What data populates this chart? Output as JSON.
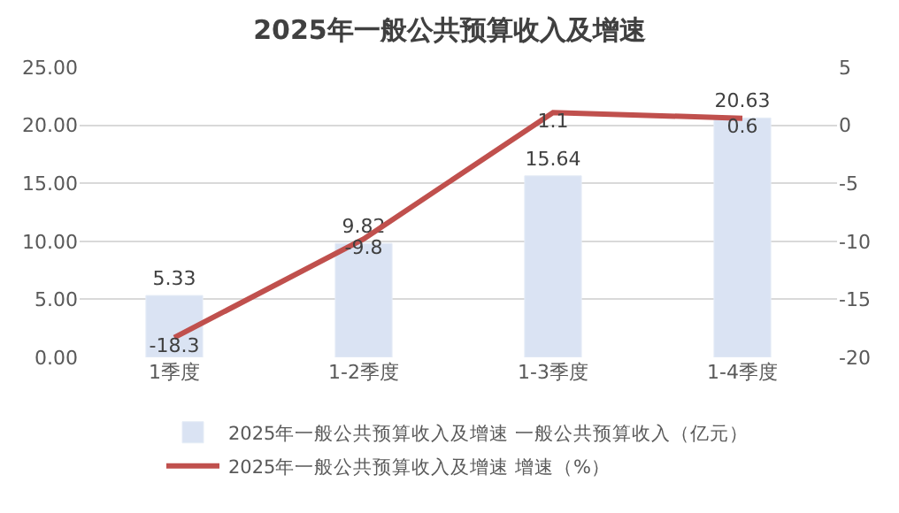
{
  "chart_data": {
    "type": "bar",
    "title": "2025年一般公共预算收入及增速",
    "categories": [
      "1季度",
      "1-2季度",
      "1-3季度",
      "1-4季度"
    ],
    "series": [
      {
        "name": "2025年一般公共预算收入及增速 一般公共预算收入（亿元）",
        "color": "#dae3f3",
        "values": [
          5.33,
          9.82,
          15.64,
          20.63
        ]
      },
      {
        "name": "2025年一般公共预算收入及增速 增速（%）",
        "type": "line",
        "axis": "y2",
        "color": "#c0504d",
        "values": [
          -18.3,
          -9.8,
          1.1,
          0.6
        ]
      }
    ],
    "ylim": [
      0,
      25
    ],
    "yticks": [
      {
        "value": 0,
        "label": "0.00"
      },
      {
        "value": 5,
        "label": "5.00"
      },
      {
        "value": 10,
        "label": "10.00"
      },
      {
        "value": 15,
        "label": "15.00"
      },
      {
        "value": 20,
        "label": "20.00"
      },
      {
        "value": 25,
        "label": "25.00"
      }
    ],
    "y2lim": [
      -20,
      5
    ],
    "y2ticks": [
      -20,
      -15,
      -10,
      -5,
      0,
      5
    ],
    "data_labels": true,
    "grid": "y",
    "legend": "bottom",
    "marker": "none",
    "line_style": "solid"
  }
}
